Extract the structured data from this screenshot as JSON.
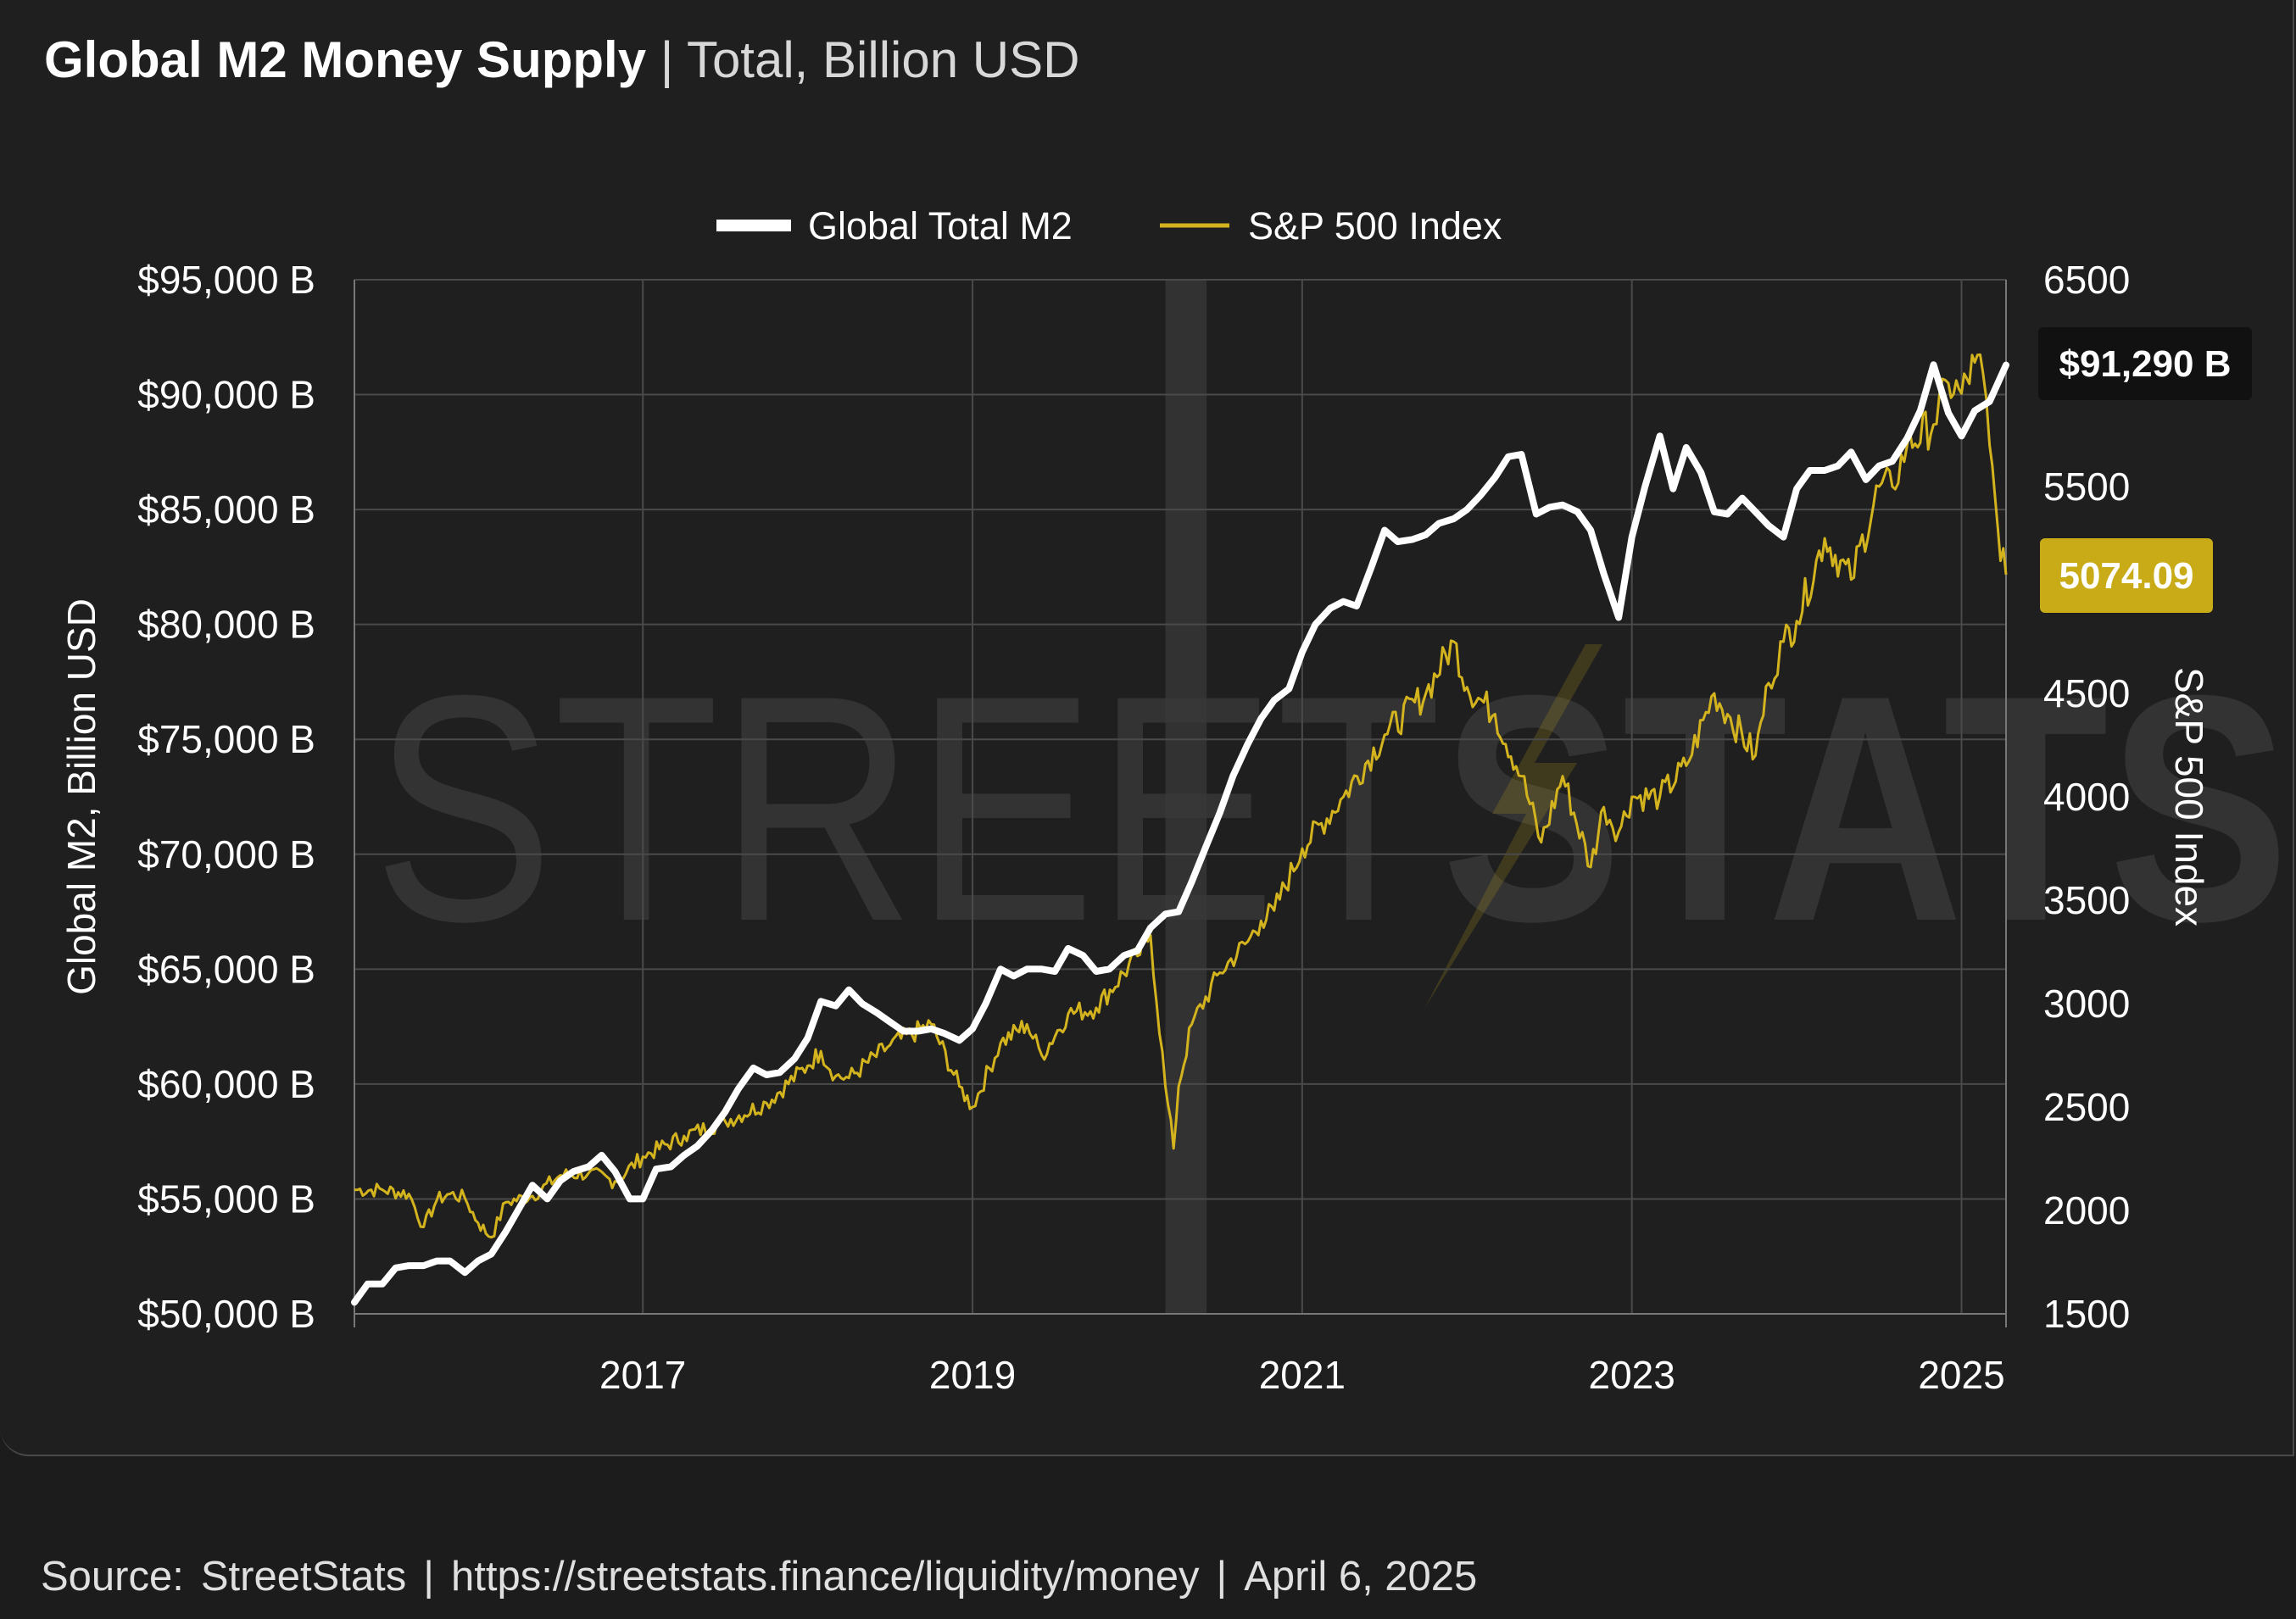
{
  "header": {
    "title_bold": "Global M2 Money Supply",
    "separator": "|",
    "title_rest": "Total, Billion USD"
  },
  "footer": {
    "source_label": "Source:",
    "source_name": "StreetStats",
    "sep1": "|",
    "url": "https://streetstats.finance/liquidity/money",
    "sep2": "|",
    "date": "April 6, 2025"
  },
  "watermark": {
    "text_light": "STREET",
    "text_bold": "STATS"
  },
  "colors": {
    "background": "#1f1f1f",
    "m2_line": "#ffffff",
    "sp500_line": "#d4b41e",
    "grid": "#4a4a4a",
    "shading": "#3a3a3a",
    "badge_m2_bg": "#111111",
    "badge_sp_bg": "#c9ab17"
  },
  "chart_data": {
    "type": "line",
    "legend_position": "top-center",
    "grid": true,
    "x_ticks": [
      "2017",
      "2019",
      "2021",
      "2023",
      "2025"
    ],
    "x_tick_values": [
      2017.0,
      2019.0,
      2021.0,
      2023.0,
      2025.0
    ],
    "xlim": [
      2015.25,
      2025.27
    ],
    "y_left": {
      "label": "Global M2, Billion USD",
      "lim": [
        50000,
        95000
      ],
      "ticks": [
        95000,
        90000,
        85000,
        80000,
        75000,
        70000,
        65000,
        60000,
        55000,
        50000
      ],
      "tick_labels": [
        "$95,000 B",
        "$90,000 B",
        "$85,000 B",
        "$80,000 B",
        "$75,000 B",
        "$70,000 B",
        "$65,000 B",
        "$60,000 B",
        "$55,000 B",
        "$50,000 B"
      ]
    },
    "y_right": {
      "label": "S&P 500 Index",
      "lim": [
        1500,
        6500
      ],
      "ticks": [
        6500,
        6000,
        5500,
        5000,
        4500,
        4000,
        3500,
        3000,
        2500,
        2000,
        1500
      ],
      "tick_labels": [
        "6500",
        "6000",
        "5500",
        "5000",
        "4500",
        "4000",
        "3500",
        "3000",
        "2500",
        "2000",
        "1500"
      ]
    },
    "shaded_period": [
      2020.17,
      2020.42
    ],
    "series": [
      {
        "name": "Global Total M2",
        "axis": "left",
        "x": [
          2015.25,
          2015.33,
          2015.42,
          2015.5,
          2015.58,
          2015.67,
          2015.75,
          2015.83,
          2015.92,
          2016.0,
          2016.08,
          2016.17,
          2016.25,
          2016.33,
          2016.42,
          2016.5,
          2016.58,
          2016.67,
          2016.75,
          2016.83,
          2016.92,
          2017.0,
          2017.08,
          2017.17,
          2017.25,
          2017.33,
          2017.42,
          2017.5,
          2017.58,
          2017.67,
          2017.75,
          2017.83,
          2017.92,
          2018.0,
          2018.08,
          2018.17,
          2018.25,
          2018.33,
          2018.42,
          2018.5,
          2018.58,
          2018.67,
          2018.75,
          2018.83,
          2018.92,
          2019.0,
          2019.08,
          2019.17,
          2019.25,
          2019.33,
          2019.42,
          2019.5,
          2019.58,
          2019.67,
          2019.75,
          2019.83,
          2019.92,
          2020.0,
          2020.08,
          2020.17,
          2020.25,
          2020.33,
          2020.42,
          2020.5,
          2020.58,
          2020.67,
          2020.75,
          2020.83,
          2020.92,
          2021.0,
          2021.08,
          2021.17,
          2021.25,
          2021.33,
          2021.42,
          2021.5,
          2021.58,
          2021.67,
          2021.75,
          2021.83,
          2021.92,
          2022.0,
          2022.08,
          2022.17,
          2022.25,
          2022.33,
          2022.42,
          2022.5,
          2022.58,
          2022.67,
          2022.75,
          2022.83,
          2022.92,
          2023.0,
          2023.08,
          2023.17,
          2023.25,
          2023.33,
          2023.42,
          2023.5,
          2023.58,
          2023.67,
          2023.75,
          2023.83,
          2023.92,
          2024.0,
          2024.08,
          2024.17,
          2024.25,
          2024.33,
          2024.42,
          2024.5,
          2024.58,
          2024.67,
          2024.75,
          2024.83,
          2024.92,
          2025.0,
          2025.08,
          2025.17,
          2025.27
        ],
        "values": [
          50500,
          51300,
          51300,
          52000,
          52100,
          52100,
          52300,
          52300,
          51800,
          52300,
          52600,
          53600,
          54600,
          55600,
          55000,
          55800,
          56200,
          56400,
          56900,
          56200,
          55000,
          55000,
          56300,
          56400,
          56900,
          57300,
          58000,
          58800,
          59800,
          60700,
          60400,
          60500,
          61100,
          62000,
          63600,
          63400,
          64100,
          63500,
          63100,
          62700,
          62300,
          62300,
          62400,
          62200,
          61900,
          62400,
          63500,
          65000,
          64700,
          65000,
          65000,
          64900,
          65900,
          65600,
          64900,
          65000,
          65600,
          65800,
          66800,
          67400,
          67500,
          68800,
          70400,
          71800,
          73400,
          74800,
          75900,
          76700,
          77200,
          78800,
          80000,
          80700,
          81000,
          80800,
          82500,
          84100,
          83600,
          83700,
          83900,
          84400,
          84600,
          85000,
          85600,
          86400,
          87300,
          87400,
          84800,
          85100,
          85200,
          84900,
          84100,
          82200,
          80300,
          83800,
          86000,
          88200,
          85900,
          87700,
          86600,
          84900,
          84800,
          85500,
          84900,
          84300,
          83800,
          85900,
          86700,
          86700,
          86900,
          87500,
          86300,
          86900,
          87100,
          88100,
          89300,
          91300,
          89200,
          88200,
          89300,
          89700,
          91290
        ]
      },
      {
        "name": "S&P 500 Index",
        "axis": "right",
        "x": [
          2015.25,
          2015.42,
          2015.58,
          2015.67,
          2015.75,
          2015.83,
          2015.92,
          2016.0,
          2016.08,
          2016.17,
          2016.33,
          2016.5,
          2016.67,
          2016.83,
          2017.0,
          2017.25,
          2017.5,
          2017.75,
          2018.0,
          2018.08,
          2018.17,
          2018.25,
          2018.5,
          2018.75,
          2018.92,
          2019.0,
          2019.17,
          2019.33,
          2019.42,
          2019.58,
          2019.75,
          2020.0,
          2020.08,
          2020.17,
          2020.22,
          2020.25,
          2020.33,
          2020.5,
          2020.67,
          2020.75,
          2020.83,
          2021.0,
          2021.25,
          2021.5,
          2021.75,
          2021.92,
          2022.0,
          2022.17,
          2022.33,
          2022.45,
          2022.58,
          2022.75,
          2022.83,
          2022.92,
          2023.0,
          2023.17,
          2023.33,
          2023.5,
          2023.58,
          2023.75,
          2023.83,
          2023.92,
          2024.0,
          2024.17,
          2024.33,
          2024.5,
          2024.58,
          2024.67,
          2024.83,
          2024.92,
          2025.0,
          2025.08,
          2025.13,
          2025.17,
          2025.22,
          2025.27
        ],
        "values": [
          2100,
          2100,
          2080,
          1920,
          2050,
          2080,
          2060,
          1940,
          1870,
          2040,
          2070,
          2170,
          2180,
          2140,
          2260,
          2360,
          2430,
          2520,
          2700,
          2770,
          2650,
          2640,
          2800,
          2900,
          2600,
          2500,
          2810,
          2900,
          2750,
          2950,
          2980,
          3230,
          3330,
          2600,
          2300,
          2600,
          2900,
          3150,
          3300,
          3400,
          3450,
          3750,
          4000,
          4300,
          4500,
          4750,
          4530,
          4400,
          4100,
          3780,
          4100,
          3660,
          3950,
          3830,
          4000,
          4000,
          4150,
          4500,
          4400,
          4200,
          4550,
          4750,
          4850,
          5250,
          5050,
          5500,
          5500,
          5700,
          5800,
          6000,
          5950,
          6100,
          6050,
          5700,
          5300,
          5074.09
        ]
      }
    ],
    "end_labels": {
      "m2": "$91,290 B",
      "sp500": "5074.09"
    }
  }
}
